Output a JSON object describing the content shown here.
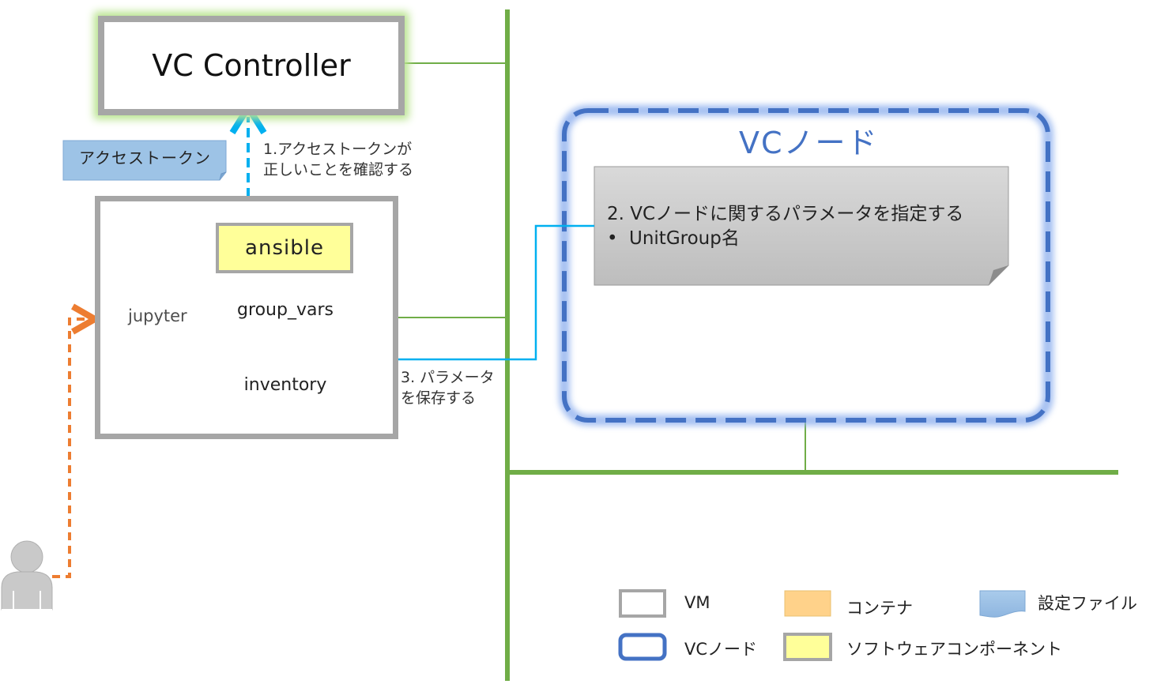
{
  "controller": {
    "title": "VC Controller"
  },
  "access_token": {
    "label": "アクセストークン"
  },
  "vm": {
    "logo_text": "jupyter",
    "containers": [
      {
        "label": "ansible",
        "kind": "software-component"
      },
      {
        "label": "group_vars",
        "kind": "config-file"
      },
      {
        "label": "inventory",
        "kind": "config-file"
      }
    ]
  },
  "steps": {
    "step1": [
      "1.アクセストークンが",
      "正しいことを確認する"
    ],
    "step3": [
      "3. パラメータ",
      "を保存する"
    ]
  },
  "vc_node": {
    "title": "VCノード",
    "note_line1": "2. VCノードに関するパラメータを指定する",
    "note_bullet": "•",
    "note_line2": "UnitGroup名"
  },
  "legend": {
    "vm": "VM",
    "vc_node": "VCノード",
    "container": "コンテナ",
    "software_component": "ソフトウェアコンポーネント",
    "config_file": "設定ファイル"
  },
  "colors": {
    "network": "#70ad47",
    "vm_border": "#a6a6a6",
    "vc_node_border": "#4472c4",
    "config_file_fill": "#9dc3e6",
    "software_component_fill": "#ffff99",
    "container_fill": "#ffd28a",
    "user_path": "#ed7d31",
    "token_path": "#00b0f0",
    "note_fill": "#c8c8c8"
  },
  "icons": {
    "user": "user-icon",
    "jupyter": "jupyter-logo",
    "document": "document-icon"
  }
}
